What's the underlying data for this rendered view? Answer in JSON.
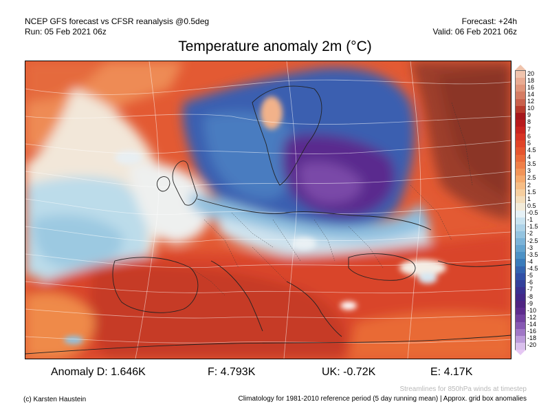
{
  "header": {
    "line1": "NCEP GFS forecast vs CFSR reanalysis @0.5deg",
    "line2": "Run: 05 Feb 2021 06z",
    "forecast": "Forecast: +24h",
    "valid": "Valid: 06 Feb 2021 06z"
  },
  "title": "Temperature anomaly 2m (°C)",
  "legend": {
    "labels": [
      "20",
      "18",
      "16",
      "14",
      "12",
      "10",
      "9",
      "8",
      "7",
      "6",
      "5",
      "4.5",
      "4",
      "3.5",
      "3",
      "2.5",
      "2",
      "1.5",
      "1",
      "0.5",
      "-0.5",
      "-1",
      "-1.5",
      "-2",
      "-2.5",
      "-3",
      "-3.5",
      "-4",
      "-4.5",
      "-5",
      "-6",
      "-7",
      "-8",
      "-9",
      "-10",
      "-12",
      "-14",
      "-16",
      "-18",
      "-20"
    ],
    "colors": [
      "#f0c4ad",
      "#e9ab92",
      "#e0957a",
      "#d57c63",
      "#c9614c",
      "#b73a2c",
      "#a5171b",
      "#b81a1c",
      "#c9241f",
      "#d73324",
      "#e04428",
      "#e5552f",
      "#ea6a3a",
      "#ef7f48",
      "#f29458",
      "#f5a96c",
      "#f6bd85",
      "#f5ce9f",
      "#f3ddbb",
      "#f2ebd9",
      "#e6f1f6",
      "#c9e3f0",
      "#aed3e8",
      "#94c4e0",
      "#7bb3d8",
      "#63a3cf",
      "#4c91c5",
      "#3a7cbb",
      "#3364b0",
      "#3150a6",
      "#33409b",
      "#3a3191",
      "#432888",
      "#502582",
      "#5e2c8e",
      "#7240a0",
      "#8759b3",
      "#a077c6",
      "#bc9bda",
      "#d9c0ec"
    ]
  },
  "stats": {
    "d": "Anomaly D: 1.646K",
    "f": "F: 4.793K",
    "uk": "UK: -0.72K",
    "e": "E: 4.17K"
  },
  "footer": {
    "copyright": "(c) Karsten Haustein",
    "streamlines": "Streamlines for 850hPa winds at timestep",
    "climatology": "Climatology for 1981-2010 reference period (5 day running mean) | Approx. grid box anomalies"
  }
}
